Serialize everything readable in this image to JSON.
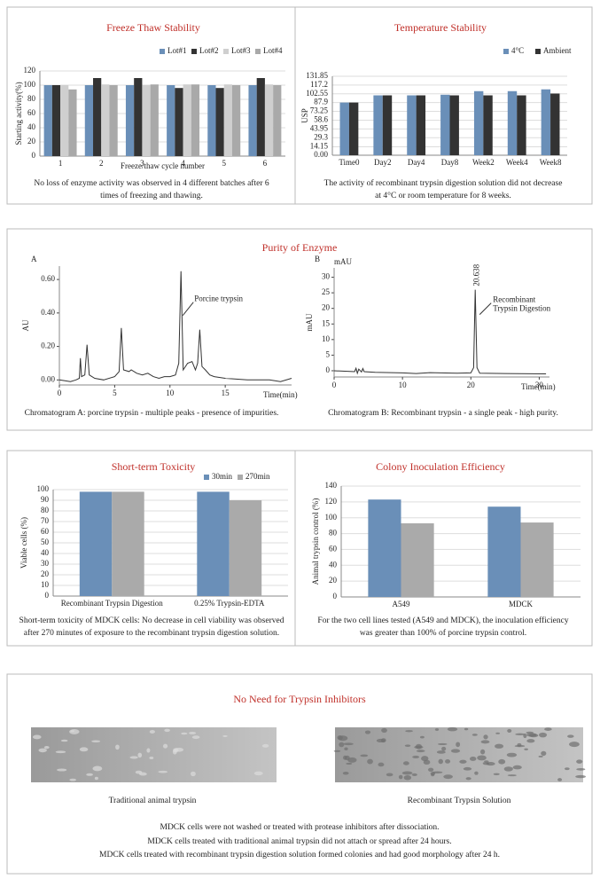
{
  "chart_data": [
    {
      "type": "bar",
      "title": "Freeze Thaw Stability",
      "categories": [
        "1",
        "2",
        "3",
        "4",
        "5",
        "6"
      ],
      "series": [
        {
          "name": "Lot#1",
          "color": "#6a8fb8",
          "values": [
            100,
            100,
            100,
            100,
            100,
            100
          ]
        },
        {
          "name": "Lot#2",
          "color": "#333333",
          "values": [
            100,
            110,
            110,
            96,
            96,
            110
          ]
        },
        {
          "name": "Lot#3",
          "color": "#cfcfcf",
          "values": [
            100,
            101,
            100,
            101,
            101,
            101
          ]
        },
        {
          "name": "Lot#4",
          "color": "#a9a9a9",
          "values": [
            94,
            100,
            101,
            101,
            100,
            100
          ]
        }
      ],
      "ylim": [
        0,
        120
      ],
      "yticks": [
        0,
        20,
        40,
        60,
        80,
        100,
        120
      ],
      "xlabel": "Freeze/thaw cycle number",
      "ylabel": "Starting activity(%)",
      "caption": [
        "No loss of enzyme activity was observed in 4 different batches after 6",
        "times of freezing and thawing."
      ]
    },
    {
      "type": "bar",
      "title": "Temperature Stability",
      "categories": [
        "Time0",
        "Day2",
        "Day4",
        "Day8",
        "Week2",
        "Week4",
        "Week8"
      ],
      "series": [
        {
          "name": "4°C",
          "color": "#6a8fb8",
          "values": [
            88,
            100,
            100,
            101,
            107,
            107,
            110
          ]
        },
        {
          "name": "Ambient",
          "color": "#333333",
          "values": [
            88,
            100,
            100,
            100,
            100,
            100,
            103
          ]
        }
      ],
      "ylim": [
        0,
        131.85
      ],
      "yticks": [
        {
          "value": 0,
          "label": "0.00"
        },
        14.15,
        29.3,
        43.95,
        58.6,
        73.25,
        87.9,
        102.55,
        117.2,
        131.85
      ],
      "ylabel": "USP",
      "caption": [
        "The activity of recombinant trypsin digestion solution did not decrease",
        "at 4°C or room temperature for 8 weeks."
      ]
    },
    {
      "type": "line",
      "label": "A",
      "x": [
        0,
        1,
        1.5,
        1.8,
        1.9,
        2.0,
        2.3,
        2.5,
        2.7,
        3.2,
        4,
        5,
        5.4,
        5.6,
        5.8,
        6.3,
        6.5,
        7,
        7.5,
        8,
        8.5,
        9,
        9.5,
        10,
        10.5,
        10.8,
        11,
        11.2,
        11.6,
        12,
        12.3,
        12.5,
        12.7,
        12.9,
        13.2,
        13.6,
        14,
        15,
        17,
        19,
        20,
        21
      ],
      "values": [
        0,
        -0.01,
        0,
        0.01,
        0.13,
        0.02,
        0.03,
        0.21,
        0.03,
        0.01,
        0,
        0.02,
        0.05,
        0.31,
        0.06,
        0.05,
        0.06,
        0.04,
        0.03,
        0.04,
        0.02,
        0.01,
        0.02,
        0.02,
        0.03,
        0.1,
        0.65,
        0.06,
        0.1,
        0.11,
        0.06,
        0.1,
        0.3,
        0.08,
        0.06,
        0.03,
        0.02,
        0.01,
        0,
        0,
        -0.01,
        0.01
      ],
      "xlim": [
        0,
        21
      ],
      "ylim": [
        -0.03,
        0.68
      ],
      "xticks": [
        0,
        5,
        10,
        15
      ],
      "yticks": [
        {
          "value": 0,
          "label": "0.00"
        },
        {
          "value": 0.2,
          "label": "0.20"
        },
        {
          "value": 0.4,
          "label": "0.40"
        },
        {
          "value": 0.6,
          "label": "0.60"
        }
      ],
      "xlabel": "Time(min)",
      "ylabel": "AU",
      "annotation": "Porcine trypsin",
      "caption": [
        "Chromatogram A: porcine trypsin - multiple peaks - presence of impurities."
      ]
    },
    {
      "type": "line",
      "label": "B",
      "x": [
        0,
        3,
        3.2,
        3.4,
        3.6,
        4,
        4.2,
        4.4,
        6,
        10,
        12,
        14,
        18,
        20,
        20.4,
        20.638,
        20.9,
        21.3,
        25,
        31
      ],
      "values": [
        0,
        -0.3,
        0.8,
        -0.8,
        0.5,
        -0.4,
        0.7,
        -0.3,
        -0.5,
        -0.7,
        -0.9,
        -0.6,
        -0.8,
        -0.7,
        1,
        26,
        1,
        -0.8,
        -0.9,
        -1
      ],
      "xlim": [
        0,
        31.5
      ],
      "ylim": [
        -2,
        33
      ],
      "xticks": [
        0,
        10,
        20,
        30
      ],
      "yticks": [
        0,
        5,
        10,
        15,
        20,
        25,
        30
      ],
      "xlabel": "Time(min)",
      "ylabel": "mAU",
      "unit": "mAU",
      "peak_label": "20.638",
      "annotation": [
        "Recombinant",
        "Trypsin Digestion"
      ],
      "caption": [
        "Chromatogram B: Recombinant trypsin - a single peak - high purity."
      ]
    },
    {
      "type": "bar",
      "title": "Short-term Toxicity",
      "categories": [
        "Recombinant Trypsin Digestion",
        "0.25% Trypsin-EDTA"
      ],
      "series": [
        {
          "name": "30min",
          "color": "#6a8fb8",
          "values": [
            98,
            98
          ]
        },
        {
          "name": "270min",
          "color": "#aaaaaa",
          "values": [
            98,
            90
          ]
        }
      ],
      "ylim": [
        0,
        100
      ],
      "yticks": [
        0,
        10,
        20,
        30,
        40,
        50,
        60,
        70,
        80,
        90,
        100
      ],
      "ylabel": "Viable cells (%)",
      "caption": [
        "Short-term toxicity of MDCK cells: No decrease in cell viability was observed",
        "after 270 minutes of exposure to the recombinant trypsin digestion solution."
      ]
    },
    {
      "type": "bar",
      "title": "Colony Inoculation Efficiency",
      "categories": [
        "A549",
        "MDCK"
      ],
      "series": [
        {
          "color": "#6a8fb8",
          "values": [
            123,
            114
          ]
        },
        {
          "color": "#aaaaaa",
          "values": [
            93,
            94
          ]
        }
      ],
      "ylim": [
        0,
        140
      ],
      "yticks": [
        0,
        20,
        40,
        60,
        80,
        100,
        120,
        140
      ],
      "ylabel": "Animal trypsin control (%)",
      "caption": [
        "For the two cell lines tested (A549 and MDCK), the inoculation efficiency",
        "was greater than 100% of porcine trypsin control."
      ]
    }
  ],
  "purity_section": {
    "title": "Purity of Enzyme"
  },
  "inhibitor_section": {
    "title": "No Need for Trypsin Inhibitors",
    "images": [
      {
        "caption": "Traditional animal trypsin"
      },
      {
        "caption": "Recombinant Trypsin Solution"
      }
    ],
    "text": [
      "MDCK cells were not washed or treated with protease inhibitors after dissociation.",
      "MDCK cells treated with traditional animal trypsin did not attach or spread after 24 hours.",
      "MDCK cells treated with recombinant trypsin digestion solution formed colonies and had good morphology after 24 h."
    ]
  }
}
